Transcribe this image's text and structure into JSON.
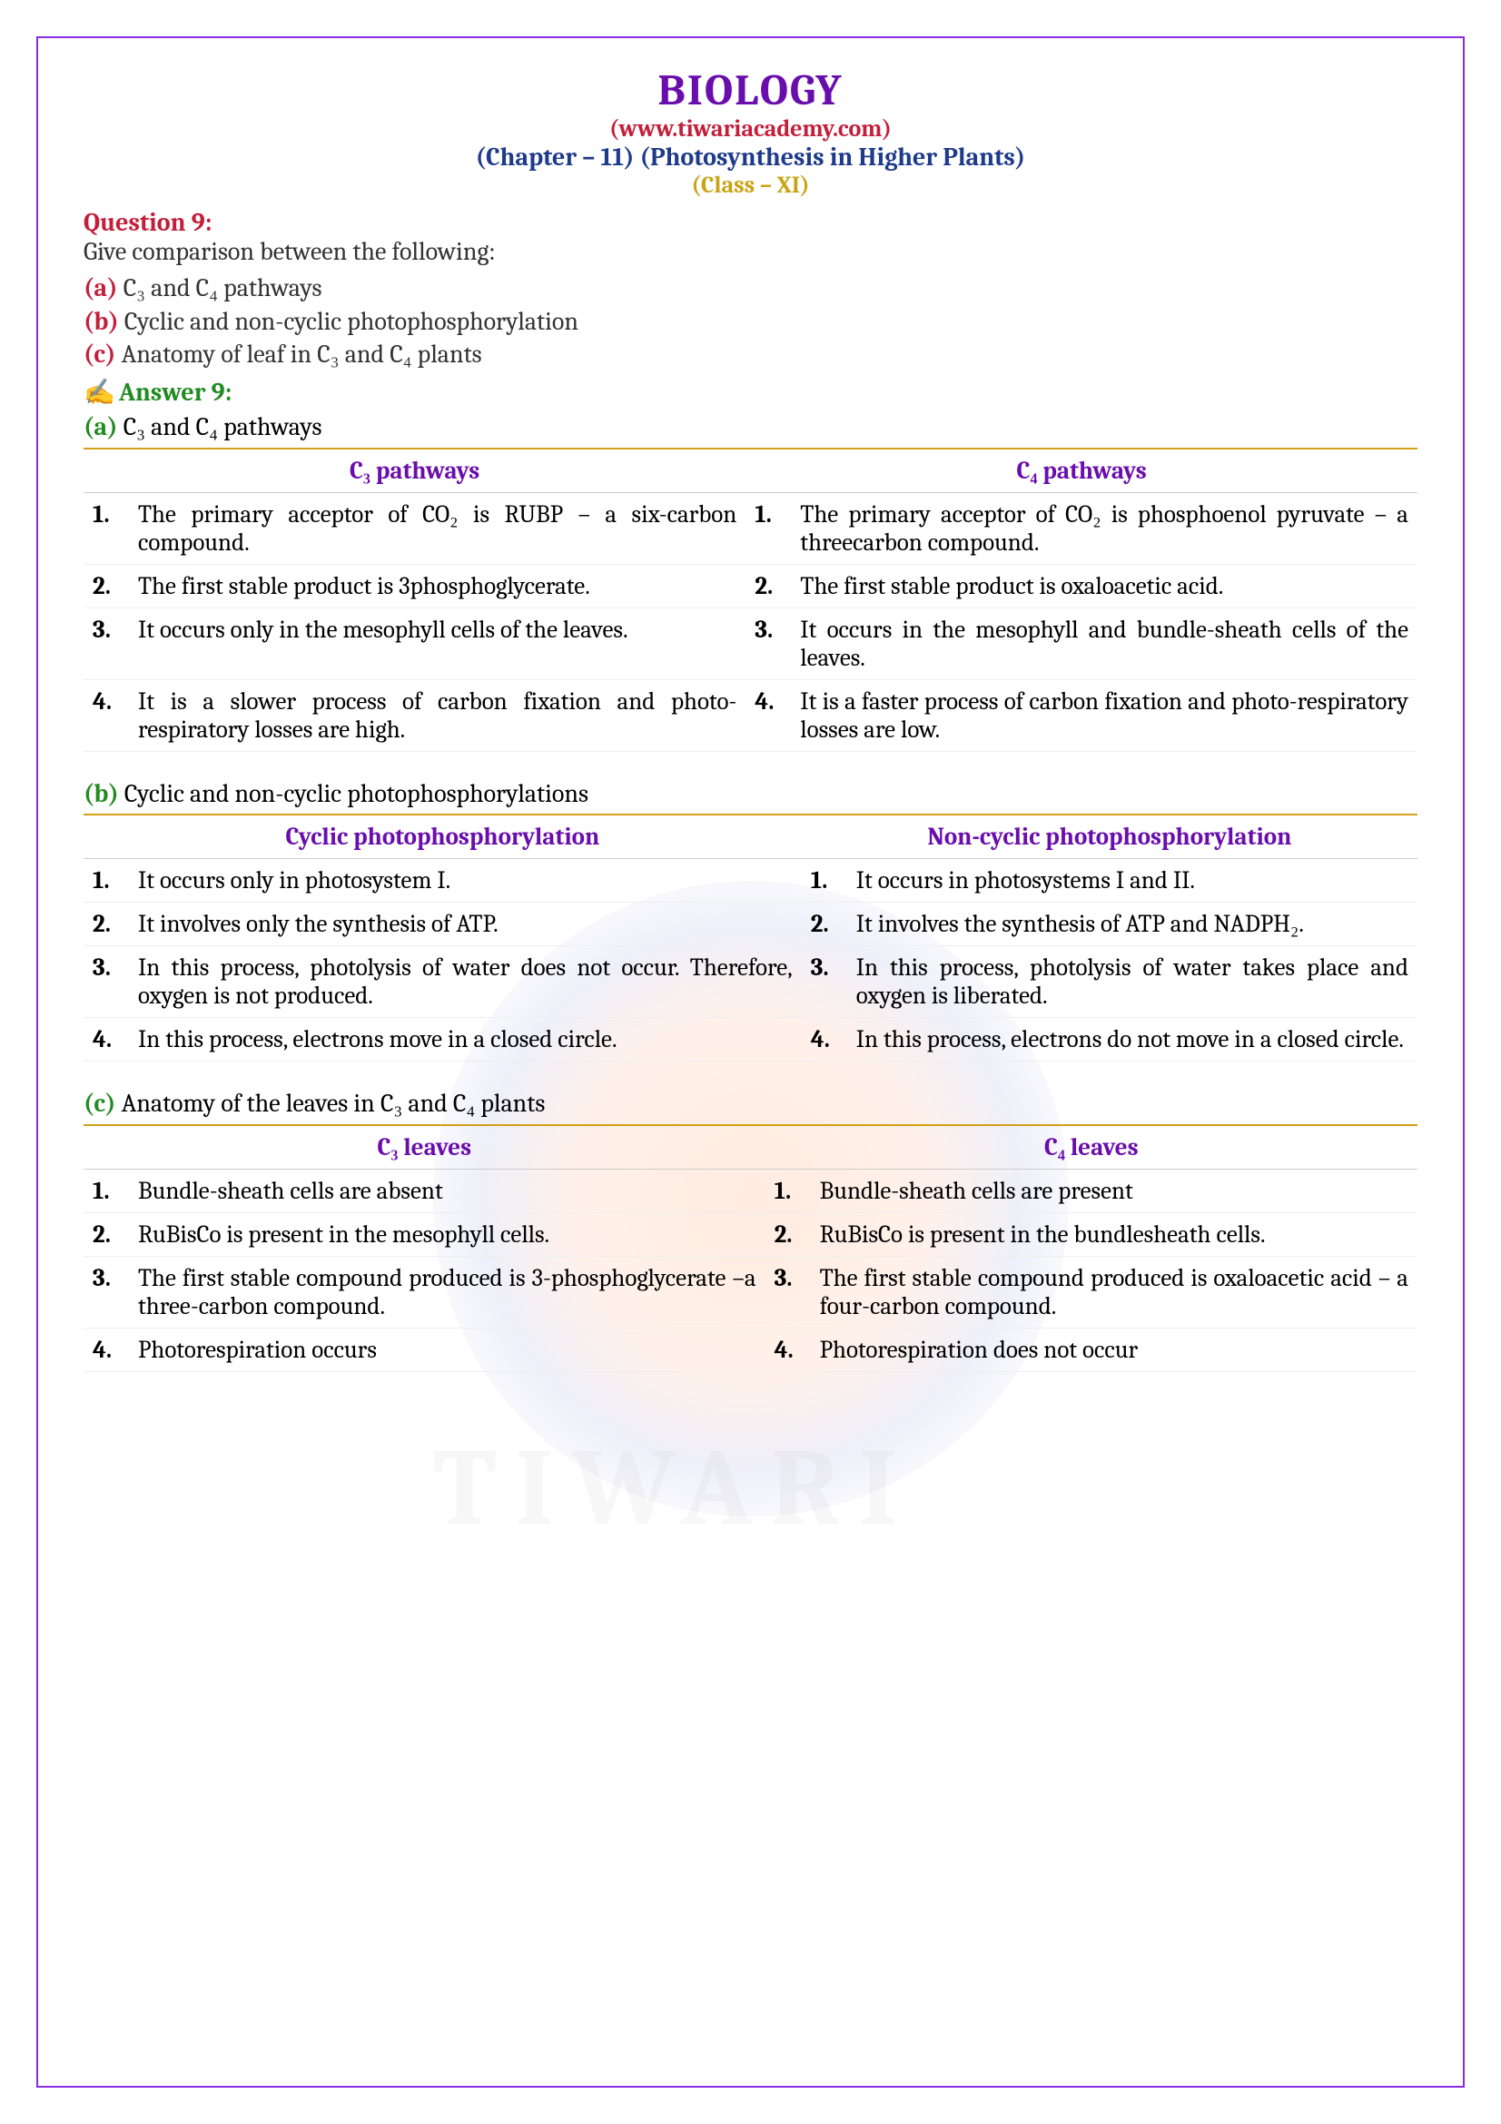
{
  "header": {
    "title": "BIOLOGY",
    "website": "(www.tiwariacademy.com)",
    "chapter": "(Chapter – 11) (Photosynthesis in Higher Plants)",
    "class": "(Class – XI)"
  },
  "question": {
    "label": "Question 9:",
    "text": "Give comparison between the following:",
    "options": [
      {
        "label": "(a)",
        "text": "C₃ and C₄ pathways"
      },
      {
        "label": "(b)",
        "text": "Cyclic and non-cyclic photophosphorylation"
      },
      {
        "label": "(c)",
        "text": "Anatomy of leaf in C₃ and C₄ plants"
      }
    ]
  },
  "answer": {
    "label": "Answer 9:",
    "parts": [
      {
        "label": "(a)",
        "text": "C₃ and C₄ pathways",
        "headers": [
          "C₃ pathways",
          "C₄ pathways"
        ],
        "rows": [
          [
            "The primary acceptor of CO₂ is RUBP – a six-carbon compound.",
            "The primary acceptor of CO₂ is phosphoenol pyruvate – a threecarbon compound."
          ],
          [
            "The first stable product is 3phosphoglycerate.",
            "The first stable product is oxaloacetic acid."
          ],
          [
            "It occurs only in the mesophyll cells of the leaves.",
            "It occurs in the mesophyll and bundle-sheath cells of the leaves."
          ],
          [
            "It is a slower process of carbon fixation and photo-respiratory losses are high.",
            "It is a faster process of carbon fixation and photo-respiratory losses are low."
          ]
        ]
      },
      {
        "label": "(b)",
        "text": "Cyclic and non-cyclic photophosphorylations",
        "headers": [
          "Cyclic photophosphorylation",
          "Non-cyclic photophosphorylation"
        ],
        "rows": [
          [
            "It occurs only in photosystem I.",
            "It occurs in photosystems I and II."
          ],
          [
            "It involves only the synthesis of ATP.",
            "It involves the synthesis of ATP and NADPH₂."
          ],
          [
            "In this process, photolysis of water does not occur. Therefore, oxygen is not produced.",
            "In this process, photolysis of water takes place and oxygen is liberated."
          ],
          [
            "In this process, electrons move in a closed circle.",
            "In this process, electrons do not move in a closed circle."
          ]
        ]
      },
      {
        "label": "(c)",
        "text": "Anatomy of the leaves in C₃ and C₄ plants",
        "headers": [
          "C₃ leaves",
          "C₄ leaves"
        ],
        "rows": [
          [
            "Bundle-sheath cells are absent",
            "Bundle-sheath cells are present"
          ],
          [
            "RuBisCo is present in the mesophyll cells.",
            "RuBisCo is present in the bundlesheath cells."
          ],
          [
            "The first stable compound produced is 3-phosphoglycerate –a three-carbon compound.",
            "The first stable compound produced is oxaloacetic acid – a four-carbon compound."
          ],
          [
            "Photorespiration occurs",
            "Photorespiration does not occur"
          ]
        ]
      }
    ]
  },
  "colors": {
    "border": "#8a2be2",
    "title": "#6a0dad",
    "red": "#c41e3a",
    "blue": "#1e3a8a",
    "gold": "#c8a415",
    "green": "#228b22",
    "table_border": "#d4a017"
  },
  "watermark": "TIWARI"
}
